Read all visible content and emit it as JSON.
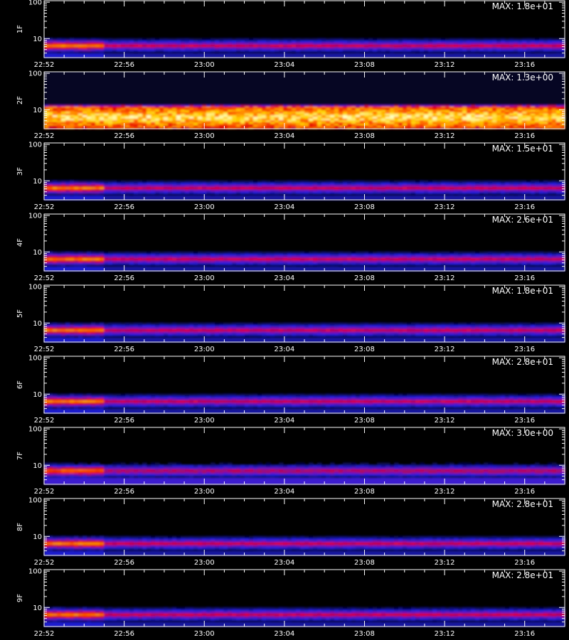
{
  "chart_data": {
    "type": "heatmap",
    "colormap": [
      "#000000",
      "#0a0a60",
      "#2020e0",
      "#8010b0",
      "#e00000",
      "#ff6000",
      "#ffd000",
      "#ffffc0"
    ],
    "x_tick_labels": [
      "22:52",
      "22:56",
      "23:00",
      "23:04",
      "23:08",
      "23:12",
      "23:16"
    ],
    "x_range": [
      "22:52",
      "23:18"
    ],
    "y_scale": "log",
    "y_tick_labels": [
      "10",
      "100"
    ],
    "y_range": [
      3,
      110
    ],
    "panels": [
      {
        "label": "1F",
        "max_label": "MAX: 1.8e+01"
      },
      {
        "label": "2F",
        "max_label": "MAX: 1.3e+00"
      },
      {
        "label": "3F",
        "max_label": "MAX: 1.5e+01"
      },
      {
        "label": "4F",
        "max_label": "MAX: 2.6e+01"
      },
      {
        "label": "5F",
        "max_label": "MAX: 1.8e+01"
      },
      {
        "label": "6F",
        "max_label": "MAX: 2.8e+01"
      },
      {
        "label": "7F",
        "max_label": "MAX: 3.0e+00"
      },
      {
        "label": "8F",
        "max_label": "MAX: 2.8e+01"
      },
      {
        "label": "9F",
        "max_label": "MAX: 2.8e+01"
      }
    ]
  }
}
